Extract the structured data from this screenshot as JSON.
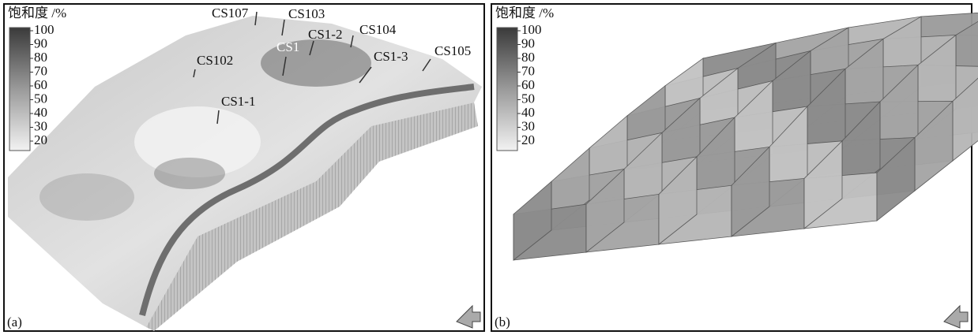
{
  "panels": [
    {
      "label": "(a)",
      "colorbar": {
        "title": "饱和度 /%",
        "ticks": [
          "100",
          "90",
          "80",
          "70",
          "60",
          "50",
          "40",
          "30",
          "20"
        ]
      },
      "wells": [
        {
          "label": "CS107"
        },
        {
          "label": "CS103"
        },
        {
          "label": "CS1-2"
        },
        {
          "label": "CS104"
        },
        {
          "label": "CS1"
        },
        {
          "label": "CS1-3"
        },
        {
          "label": "CS105"
        },
        {
          "label": "CS102"
        },
        {
          "label": "CS1-1"
        }
      ]
    },
    {
      "label": "(b)",
      "colorbar": {
        "title": "饱和度 /%",
        "ticks": [
          "100",
          "90",
          "80",
          "70",
          "60",
          "50",
          "40",
          "30",
          "20"
        ]
      }
    }
  ]
}
